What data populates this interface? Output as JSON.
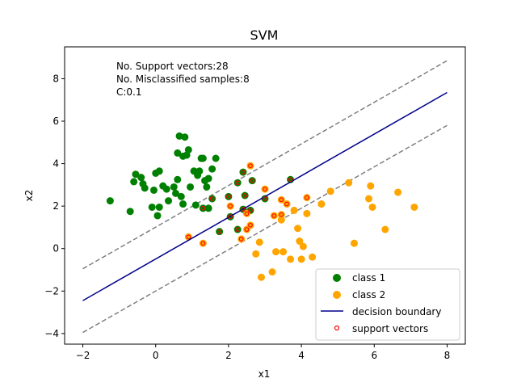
{
  "chart_data": {
    "type": "scatter",
    "title": "SVM",
    "xlabel": "x1",
    "ylabel": "x2",
    "xlim": [
      -2.5,
      8.5
    ],
    "ylim": [
      -4.5,
      9.5
    ],
    "xticks": [
      "−2",
      "0",
      "2",
      "4",
      "6",
      "8"
    ],
    "yticks": [
      "−4",
      "−2",
      "0",
      "2",
      "4",
      "6",
      "8"
    ],
    "annotations": [
      "No. Support vectors:28",
      "No. Misclassified samples:8",
      "C:0.1"
    ],
    "legend": {
      "position": "bottom-right",
      "entries": [
        "class 1",
        "class 2",
        "decision boundary",
        "support vectors"
      ]
    },
    "colors": {
      "class1": "#008000",
      "class2": "#ffa500",
      "boundary": "#00008b",
      "margin": "#808080",
      "support": "#ff0000"
    },
    "decision_boundary": {
      "x": [
        -2,
        8
      ],
      "y": [
        -2.45,
        7.35
      ]
    },
    "margin_upper": {
      "x": [
        -2,
        8
      ],
      "y": [
        -0.95,
        8.85
      ]
    },
    "margin_lower": {
      "x": [
        -2,
        8
      ],
      "y": [
        -3.95,
        5.8
      ]
    },
    "series": [
      {
        "name": "class 1",
        "points": [
          [
            -1.25,
            2.25
          ],
          [
            -0.7,
            1.75
          ],
          [
            -0.6,
            3.15
          ],
          [
            -0.55,
            3.5
          ],
          [
            -0.4,
            3.35
          ],
          [
            -0.35,
            3.05
          ],
          [
            -0.3,
            2.85
          ],
          [
            -0.1,
            1.95
          ],
          [
            -0.05,
            2.75
          ],
          [
            0.0,
            3.55
          ],
          [
            0.05,
            1.55
          ],
          [
            0.1,
            3.65
          ],
          [
            0.1,
            1.95
          ],
          [
            0.2,
            2.95
          ],
          [
            0.3,
            2.8
          ],
          [
            0.35,
            2.25
          ],
          [
            0.5,
            2.9
          ],
          [
            0.55,
            2.6
          ],
          [
            0.6,
            3.25
          ],
          [
            0.6,
            4.5
          ],
          [
            0.65,
            5.3
          ],
          [
            0.7,
            2.45
          ],
          [
            0.75,
            2.1
          ],
          [
            0.75,
            4.35
          ],
          [
            0.8,
            5.25
          ],
          [
            0.85,
            4.4
          ],
          [
            0.9,
            4.65
          ],
          [
            0.95,
            2.9
          ],
          [
            1.05,
            3.65
          ],
          [
            1.1,
            2.05
          ],
          [
            1.15,
            3.45
          ],
          [
            1.2,
            3.65
          ],
          [
            1.25,
            4.25
          ],
          [
            1.3,
            4.25
          ],
          [
            1.3,
            1.9
          ],
          [
            1.35,
            3.2
          ],
          [
            1.4,
            2.9
          ],
          [
            1.45,
            3.3
          ],
          [
            1.45,
            1.9
          ],
          [
            1.55,
            2.35
          ],
          [
            1.55,
            3.75
          ],
          [
            1.65,
            4.25
          ],
          [
            1.75,
            0.8
          ],
          [
            2.0,
            2.45
          ],
          [
            2.05,
            1.5
          ],
          [
            2.25,
            3.1
          ],
          [
            2.25,
            0.9
          ],
          [
            2.4,
            3.6
          ],
          [
            2.4,
            1.85
          ],
          [
            2.45,
            2.5
          ],
          [
            2.6,
            1.8
          ],
          [
            2.65,
            3.2
          ],
          [
            3.0,
            2.35
          ],
          [
            3.7,
            3.25
          ]
        ]
      },
      {
        "name": "class 2",
        "points": [
          [
            0.9,
            0.55
          ],
          [
            1.3,
            0.25
          ],
          [
            2.05,
            2.0
          ],
          [
            2.35,
            0.45
          ],
          [
            2.5,
            0.9
          ],
          [
            2.5,
            1.65
          ],
          [
            2.6,
            1.1
          ],
          [
            2.6,
            3.9
          ],
          [
            2.75,
            -0.25
          ],
          [
            2.85,
            0.3
          ],
          [
            2.9,
            -1.35
          ],
          [
            3.0,
            2.8
          ],
          [
            3.2,
            -1.1
          ],
          [
            3.25,
            1.55
          ],
          [
            3.3,
            -0.15
          ],
          [
            3.45,
            1.35
          ],
          [
            3.45,
            1.6
          ],
          [
            3.45,
            2.3
          ],
          [
            3.5,
            -0.15
          ],
          [
            3.6,
            2.1
          ],
          [
            3.7,
            -0.5
          ],
          [
            3.8,
            1.8
          ],
          [
            3.9,
            0.95
          ],
          [
            3.95,
            0.35
          ],
          [
            4.0,
            -0.5
          ],
          [
            4.05,
            0.1
          ],
          [
            4.15,
            1.65
          ],
          [
            4.15,
            2.4
          ],
          [
            4.3,
            -0.4
          ],
          [
            4.55,
            2.1
          ],
          [
            4.8,
            2.7
          ],
          [
            5.3,
            3.1
          ],
          [
            5.45,
            0.25
          ],
          [
            5.85,
            2.35
          ],
          [
            5.9,
            2.95
          ],
          [
            5.95,
            1.95
          ],
          [
            6.3,
            0.9
          ],
          [
            6.65,
            2.65
          ],
          [
            7.1,
            1.95
          ]
        ]
      },
      {
        "name": "support vectors",
        "points": [
          [
            0.9,
            0.55
          ],
          [
            1.3,
            0.25
          ],
          [
            2.05,
            2.0
          ],
          [
            2.35,
            0.45
          ],
          [
            2.5,
            0.9
          ],
          [
            2.5,
            1.65
          ],
          [
            2.6,
            1.1
          ],
          [
            2.6,
            3.9
          ],
          [
            3.0,
            2.8
          ],
          [
            3.25,
            1.55
          ],
          [
            3.45,
            1.6
          ],
          [
            3.45,
            2.3
          ],
          [
            3.6,
            2.1
          ],
          [
            4.15,
            2.4
          ],
          [
            2.05,
            1.5
          ],
          [
            2.25,
            0.9
          ],
          [
            2.4,
            1.85
          ],
          [
            2.45,
            2.5
          ],
          [
            2.6,
            1.8
          ],
          [
            2.65,
            3.2
          ],
          [
            3.0,
            2.35
          ],
          [
            3.7,
            3.25
          ],
          [
            1.75,
            0.8
          ],
          [
            2.0,
            2.45
          ],
          [
            2.25,
            3.1
          ],
          [
            2.4,
            3.6
          ],
          [
            1.55,
            2.35
          ],
          [
            1.3,
            1.9
          ]
        ]
      }
    ]
  }
}
